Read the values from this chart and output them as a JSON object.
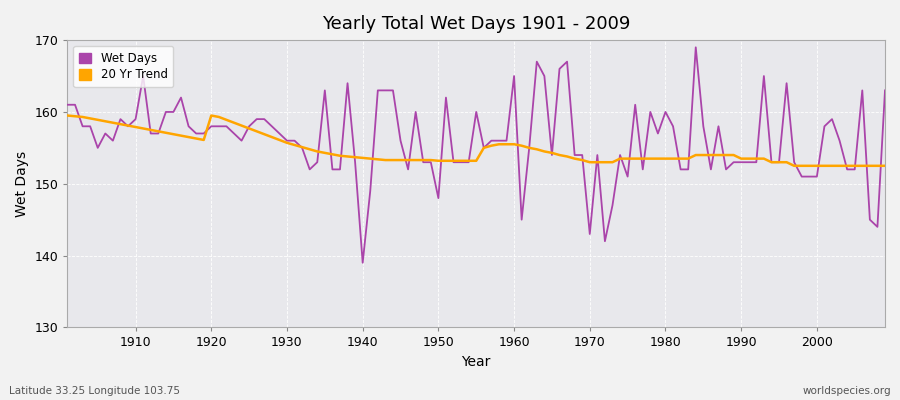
{
  "title": "Yearly Total Wet Days 1901 - 2009",
  "xlabel": "Year",
  "ylabel": "Wet Days",
  "ylim": [
    130,
    170
  ],
  "yticks": [
    130,
    140,
    150,
    160,
    170
  ],
  "xlim": [
    1901,
    2009
  ],
  "xticks": [
    1910,
    1920,
    1930,
    1940,
    1950,
    1960,
    1970,
    1980,
    1990,
    2000
  ],
  "footnote_left": "Latitude 33.25 Longitude 103.75",
  "footnote_right": "worldspecies.org",
  "legend_labels": [
    "Wet Days",
    "20 Yr Trend"
  ],
  "wet_days_color": "#AA44AA",
  "trend_color": "#FFA500",
  "fig_bg_color": "#F0F0F0",
  "plot_bg_color": "#E8E8E8",
  "years": [
    1901,
    1902,
    1903,
    1904,
    1905,
    1906,
    1907,
    1908,
    1909,
    1910,
    1911,
    1912,
    1913,
    1914,
    1915,
    1916,
    1917,
    1918,
    1919,
    1920,
    1921,
    1922,
    1923,
    1924,
    1925,
    1926,
    1927,
    1928,
    1929,
    1930,
    1931,
    1932,
    1933,
    1934,
    1935,
    1936,
    1937,
    1938,
    1939,
    1940,
    1941,
    1942,
    1943,
    1944,
    1945,
    1946,
    1947,
    1948,
    1949,
    1950,
    1951,
    1952,
    1953,
    1954,
    1955,
    1956,
    1957,
    1958,
    1959,
    1960,
    1961,
    1962,
    1963,
    1964,
    1965,
    1966,
    1967,
    1968,
    1969,
    1970,
    1971,
    1972,
    1973,
    1974,
    1975,
    1976,
    1977,
    1978,
    1979,
    1980,
    1981,
    1982,
    1983,
    1984,
    1985,
    1986,
    1987,
    1988,
    1989,
    1990,
    1991,
    1992,
    1993,
    1994,
    1995,
    1996,
    1997,
    1998,
    1999,
    2000,
    2001,
    2002,
    2003,
    2004,
    2005,
    2006,
    2007,
    2008,
    2009
  ],
  "wet_days": [
    161,
    161,
    158,
    158,
    155,
    157,
    156,
    159,
    158,
    159,
    165,
    157,
    157,
    160,
    160,
    162,
    158,
    157,
    157,
    158,
    158,
    158,
    157,
    156,
    158,
    159,
    159,
    158,
    157,
    156,
    156,
    155,
    152,
    153,
    163,
    152,
    152,
    164,
    153,
    139,
    149,
    163,
    163,
    163,
    156,
    152,
    160,
    153,
    153,
    148,
    162,
    153,
    153,
    153,
    160,
    155,
    156,
    156,
    156,
    165,
    145,
    155,
    167,
    165,
    154,
    166,
    167,
    154,
    154,
    143,
    154,
    142,
    147,
    154,
    151,
    161,
    152,
    160,
    157,
    160,
    158,
    152,
    152,
    169,
    158,
    152,
    158,
    152,
    153,
    153,
    153,
    153,
    165,
    153,
    153,
    164,
    153,
    151,
    151,
    151,
    158,
    159,
    156,
    152,
    152,
    163,
    145,
    144,
    163
  ],
  "trend": [
    159.5,
    159.4,
    159.3,
    159.1,
    158.9,
    158.7,
    158.5,
    158.3,
    158.1,
    157.9,
    157.7,
    157.5,
    157.3,
    157.1,
    156.9,
    156.7,
    156.5,
    156.3,
    156.1,
    159.5,
    159.3,
    158.9,
    158.5,
    158.1,
    157.7,
    157.3,
    156.9,
    156.5,
    156.1,
    155.7,
    155.4,
    155.1,
    154.8,
    154.5,
    154.3,
    154.1,
    153.9,
    153.8,
    153.7,
    153.6,
    153.5,
    153.4,
    153.3,
    153.3,
    153.3,
    153.3,
    153.3,
    153.3,
    153.3,
    153.2,
    153.2,
    153.2,
    153.2,
    153.2,
    153.2,
    155.0,
    155.3,
    155.5,
    155.5,
    155.5,
    155.3,
    155.0,
    154.8,
    154.5,
    154.3,
    154.0,
    153.8,
    153.5,
    153.3,
    153.0,
    153.0,
    153.0,
    153.0,
    153.5,
    153.5,
    153.5,
    153.5,
    153.5,
    153.5,
    153.5,
    153.5,
    153.5,
    153.5,
    154.0,
    154.0,
    154.0,
    154.0,
    154.0,
    154.0,
    153.5,
    153.5,
    153.5,
    153.5,
    153.0,
    153.0,
    153.0,
    152.5,
    152.5,
    152.5,
    152.5,
    152.5,
    152.5,
    152.5,
    152.5,
    152.5,
    152.5,
    152.5,
    152.5,
    152.5
  ]
}
